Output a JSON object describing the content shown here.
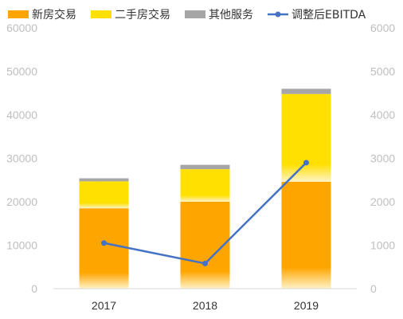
{
  "chart_data": {
    "type": "bar",
    "stacked": true,
    "categories": [
      "2017",
      "2018",
      "2019"
    ],
    "series": [
      {
        "name": "新房交易",
        "kind": "bar",
        "axis": "left",
        "color": "#FFA500",
        "values": [
          18500,
          20000,
          24600
        ]
      },
      {
        "name": "二手房交易",
        "kind": "bar",
        "axis": "left",
        "color": "#FFE000",
        "values": [
          6200,
          7500,
          20200
        ]
      },
      {
        "name": "其他服务",
        "kind": "bar",
        "axis": "left",
        "color": "#A6A6A6",
        "values": [
          700,
          1000,
          1200
        ]
      },
      {
        "name": "调整后EBITDA",
        "kind": "line",
        "axis": "right",
        "color": "#4472C4",
        "values": [
          1050,
          580,
          2900
        ]
      }
    ],
    "y_left": {
      "min": 0,
      "max": 60000,
      "ticks": [
        0,
        10000,
        20000,
        30000,
        40000,
        50000,
        60000
      ]
    },
    "y_right": {
      "min": 0,
      "max": 6000,
      "ticks": [
        0,
        1000,
        2000,
        3000,
        4000,
        5000,
        6000
      ]
    },
    "legend_position": "top",
    "grid": false
  }
}
